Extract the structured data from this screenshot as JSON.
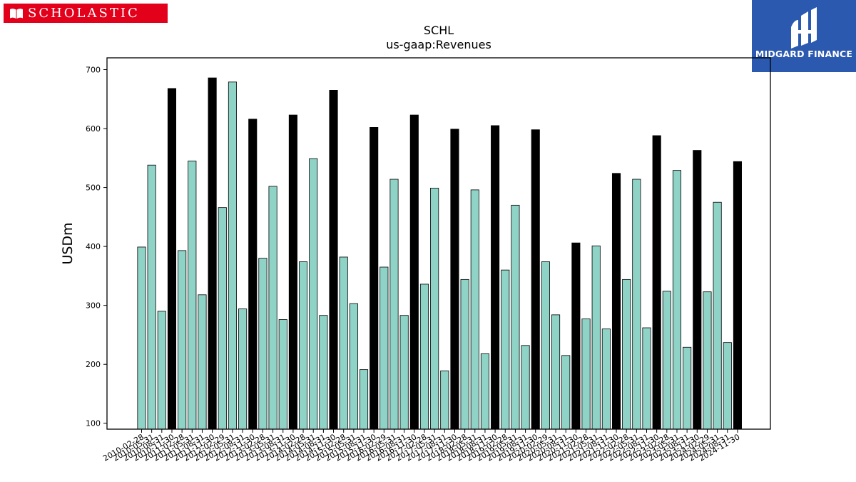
{
  "branding": {
    "left_logo_text": "SCHOLASTIC",
    "right_logo_text": "MIDGARD FINANCE",
    "left_color": "#e3001b",
    "right_color": "#2c59b0"
  },
  "chart_data": {
    "type": "bar",
    "title": "SCHL",
    "subtitle": "us-gaap:Revenues",
    "ylabel": "USDm",
    "xlabel": "",
    "ylim": [
      90,
      720
    ],
    "yticks": [
      100,
      200,
      300,
      400,
      500,
      600,
      700
    ],
    "grid": false,
    "legend": "none",
    "colors": {
      "quarter": "#8fd3c7",
      "annual": "#000000",
      "edge": "#000000"
    },
    "categories": [
      "2010-02-28",
      "2010-05-31",
      "2010-08-31",
      "2010-11-30",
      "2011-02-28",
      "2011-05-31",
      "2011-08-31",
      "2011-11-30",
      "2012-02-29",
      "2012-05-31",
      "2012-08-31",
      "2012-11-30",
      "2013-02-28",
      "2013-05-31",
      "2013-08-31",
      "2013-11-30",
      "2014-02-28",
      "2014-05-31",
      "2014-08-31",
      "2014-11-30",
      "2015-02-28",
      "2015-05-31",
      "2015-08-31",
      "2015-11-30",
      "2016-02-29",
      "2016-05-31",
      "2016-08-31",
      "2016-11-30",
      "2017-02-28",
      "2017-05-31",
      "2017-08-31",
      "2017-11-30",
      "2018-02-28",
      "2018-05-31",
      "2018-08-31",
      "2018-11-30",
      "2019-02-28",
      "2019-05-31",
      "2019-08-31",
      "2019-11-30",
      "2020-02-29",
      "2020-05-31",
      "2020-08-31",
      "2020-11-30",
      "2021-02-28",
      "2021-05-31",
      "2021-08-31",
      "2021-11-30",
      "2022-02-28",
      "2022-05-31",
      "2022-08-31",
      "2022-11-30",
      "2023-02-28",
      "2023-05-31",
      "2023-08-31",
      "2023-11-30",
      "2024-02-29",
      "2024-05-31",
      "2024-08-31",
      "2024-11-30"
    ],
    "values": [
      399,
      538,
      290,
      668,
      393,
      545,
      318,
      686,
      466,
      679,
      294,
      616,
      380,
      502,
      276,
      623,
      374,
      549,
      283,
      665,
      382,
      303,
      191,
      602,
      365,
      514,
      283,
      623,
      336,
      499,
      189,
      599,
      344,
      496,
      218,
      605,
      360,
      470,
      232,
      598,
      374,
      284,
      215,
      406,
      277,
      401,
      260,
      524,
      344,
      514,
      262,
      588,
      324,
      529,
      229,
      563,
      323,
      475,
      237,
      544
    ],
    "annual": [
      false,
      false,
      false,
      true,
      false,
      false,
      false,
      true,
      false,
      false,
      false,
      true,
      false,
      false,
      false,
      true,
      false,
      false,
      false,
      true,
      false,
      false,
      false,
      true,
      false,
      false,
      false,
      true,
      false,
      false,
      false,
      true,
      false,
      false,
      false,
      true,
      false,
      false,
      false,
      true,
      false,
      false,
      false,
      true,
      false,
      false,
      false,
      true,
      false,
      false,
      false,
      true,
      false,
      false,
      false,
      true,
      false,
      false,
      false,
      true
    ]
  }
}
